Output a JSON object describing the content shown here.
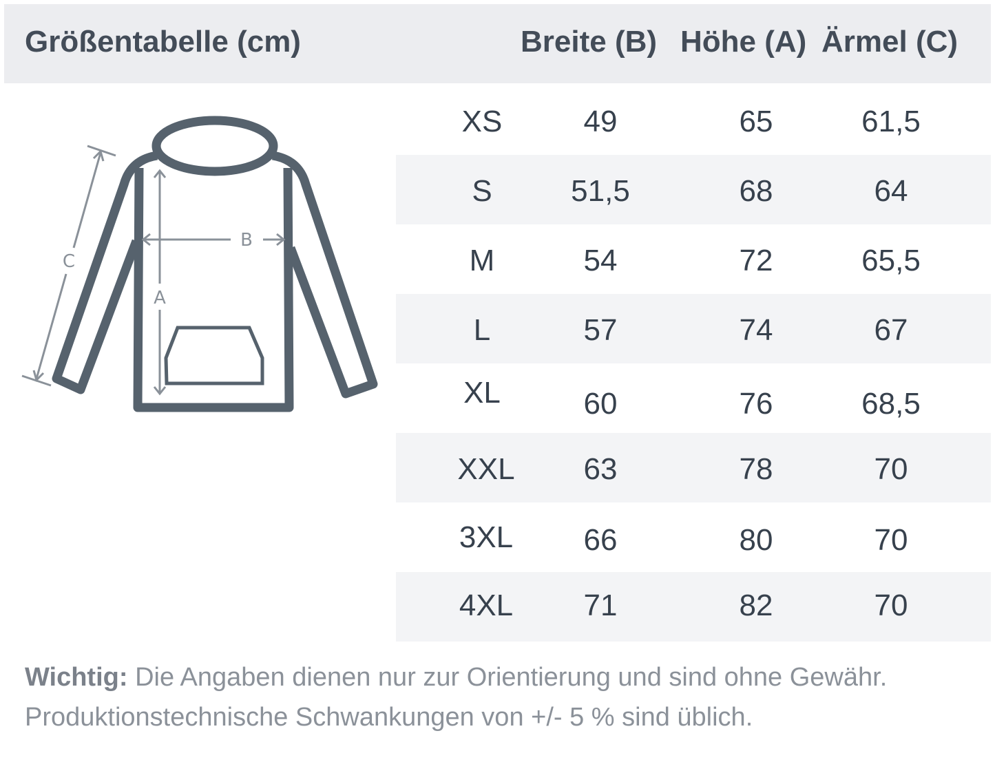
{
  "header": {
    "title": "Größentabelle (cm)",
    "columns": [
      "Breite (B)",
      "Höhe (A)",
      "Ärmel (C)"
    ]
  },
  "diagram": {
    "icon": "hoodie-measurement-icon",
    "labels": {
      "b": "B",
      "a": "A",
      "c": "C"
    },
    "colors": {
      "outline": "#56626d",
      "measure": "#8a9199"
    }
  },
  "table": {
    "rows": [
      {
        "size": "XS",
        "breite": "49",
        "hoehe": "65",
        "aermel": "61,5"
      },
      {
        "size": "S",
        "breite": "51,5",
        "hoehe": "68",
        "aermel": "64"
      },
      {
        "size": "M",
        "breite": "54",
        "hoehe": "72",
        "aermel": "65,5"
      },
      {
        "size": "L",
        "breite": "57",
        "hoehe": "74",
        "aermel": "67"
      },
      {
        "size": "XL",
        "breite": "60",
        "hoehe": "76",
        "aermel": "68,5"
      },
      {
        "size": "XXL",
        "breite": "63",
        "hoehe": "78",
        "aermel": "70"
      },
      {
        "size": "3XL",
        "breite": "66",
        "hoehe": "80",
        "aermel": "70"
      },
      {
        "size": "4XL",
        "breite": "71",
        "hoehe": "82",
        "aermel": "70"
      }
    ]
  },
  "note": {
    "label": "Wichtig:",
    "line1": " Die Angaben dienen nur zur Orientierung und sind ohne Gewähr.",
    "line2": "Produktionstechnische Schwankungen von +/- 5 % sind üblich."
  }
}
